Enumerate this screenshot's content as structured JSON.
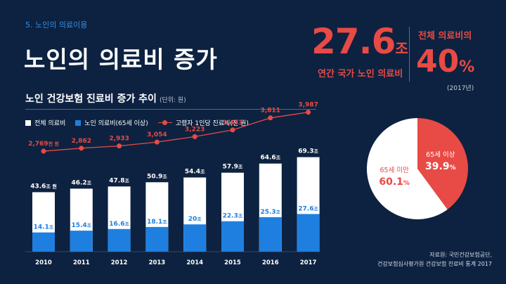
{
  "header": {
    "section_label": "5. 노인의 의료이용",
    "title": "노인의 의료비 증가"
  },
  "highlight": {
    "total_value": "27.6",
    "total_unit": "조",
    "total_caption": "연간 국가 노인 의료비",
    "share_caption": "전체 의료비의",
    "share_value": "40",
    "share_unit": "%",
    "share_year": "(2017년)"
  },
  "chart_header": {
    "title": "노인 건강보험 진료비 증가 추이",
    "unit_note": "(단위: 원)"
  },
  "legend": {
    "total": "전체 의료비",
    "elderly": "노인 의료비(65세 이상)",
    "per_capita": "고령자 1인당 진료비(천 원)"
  },
  "colors": {
    "background": "#0d2240",
    "accent_red": "#e84a45",
    "bar_blue": "#1e7fe0",
    "bar_white": "#ffffff"
  },
  "chart_data": [
    {
      "type": "bar",
      "categories": [
        "2010",
        "2011",
        "2012",
        "2013",
        "2014",
        "2015",
        "2016",
        "2017"
      ],
      "series": [
        {
          "name": "전체 의료비",
          "values": [
            43.6,
            46.2,
            47.8,
            50.9,
            54.4,
            57.9,
            64.6,
            69.3
          ],
          "labels": [
            "43.6",
            "46.2",
            "47.8",
            "50.9",
            "54.4",
            "57.9",
            "64.6",
            "69.3"
          ],
          "label_units": [
            "조 원",
            "조",
            "조",
            "조",
            "조",
            "조",
            "조",
            "조"
          ]
        },
        {
          "name": "노인 의료비(65세 이상)",
          "values": [
            14.1,
            15.4,
            16.6,
            18.1,
            20,
            22.3,
            25.3,
            27.6
          ],
          "labels": [
            "14.1",
            "15.4",
            "16.6",
            "18.1",
            "20",
            "22.3",
            "25.3",
            "27.6"
          ],
          "label_units": [
            "조",
            "조",
            "조",
            "조",
            "조",
            "조",
            "조",
            "조"
          ]
        },
        {
          "name": "고령자 1인당 진료비(천 원)",
          "type": "line",
          "values": [
            2769,
            2862,
            2933,
            3054,
            3223,
            3433,
            3811,
            3987
          ],
          "labels": [
            "2,769",
            "2,862",
            "2,933",
            "3,054",
            "3,223",
            "3,433",
            "3,811",
            "3,987"
          ],
          "label_units": [
            "천 원",
            "",
            "",
            "",
            "",
            "",
            "",
            ""
          ]
        }
      ],
      "ylim": [
        0,
        75
      ],
      "line_ylim": [
        2000,
        4200
      ]
    },
    {
      "type": "pie",
      "slices": [
        {
          "label": "65세 이상",
          "value": 39.9,
          "value_text": "39.9",
          "unit": "%",
          "color": "#e84a45"
        },
        {
          "label": "65세 미만",
          "value": 60.1,
          "value_text": "60.1",
          "unit": "%",
          "color": "#ffffff"
        }
      ]
    }
  ],
  "source": {
    "line1": "자료원: 국민건강보험공단,",
    "line2": "건강보험심사평가원 건강보험 진료비 통계 2017"
  }
}
